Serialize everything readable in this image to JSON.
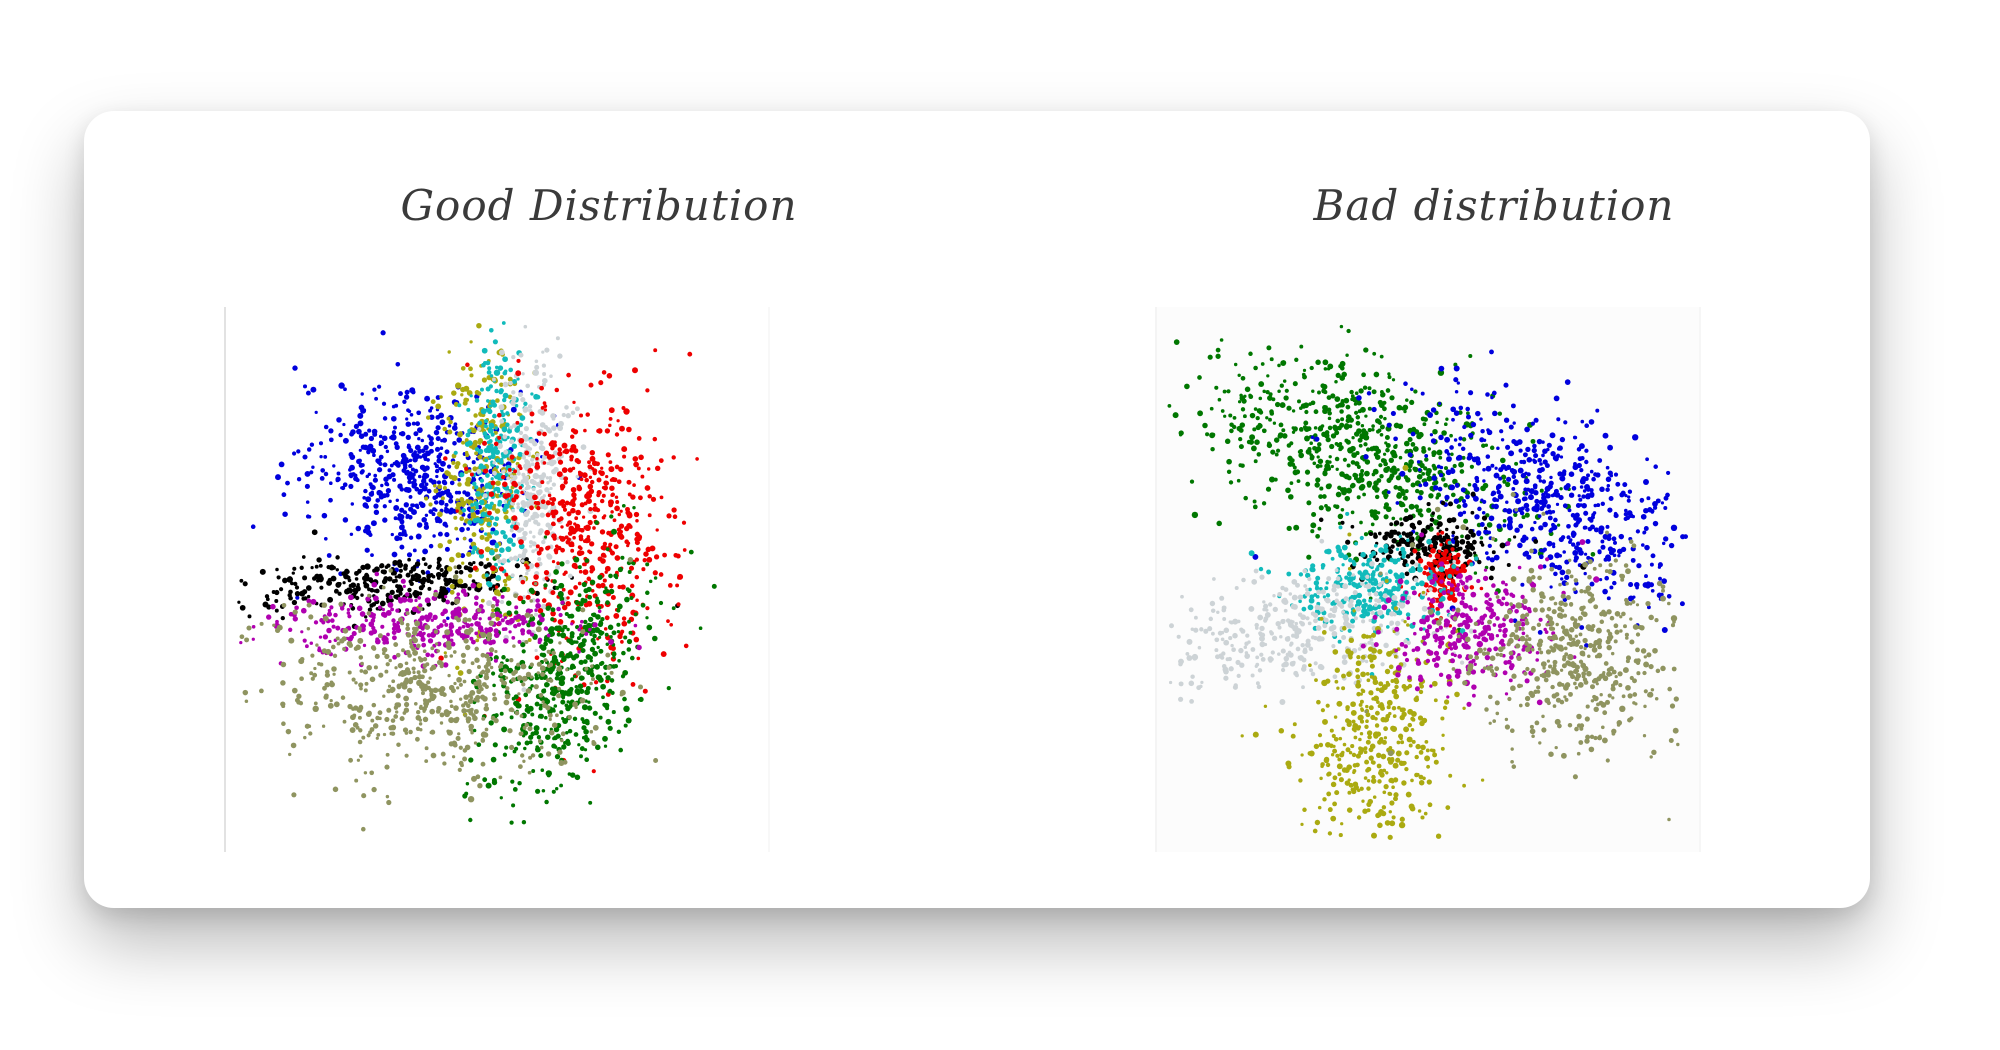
{
  "chart_data": [
    {
      "type": "scatter",
      "title": "Good Distribution",
      "xlim": [
        -10,
        10
      ],
      "ylim": [
        -10,
        10
      ],
      "grid": false,
      "series": [
        {
          "color": "#0000dd",
          "cx": -3.2,
          "cy": 4.0,
          "sx": 2.0,
          "sy": 1.6,
          "angle": -20,
          "n": 520,
          "values": [
            [
              -6.0,
              7.5
            ],
            [
              -4.0,
              5.5
            ],
            [
              -2.0,
              4.0
            ],
            [
              -1.5,
              3.0
            ],
            [
              -5.0,
              2.0
            ]
          ]
        },
        {
          "color": "#000000",
          "cx": -4.0,
          "cy": -0.2,
          "sx": 3.0,
          "sy": 0.55,
          "angle": 3,
          "n": 300,
          "values": [
            [
              -8.0,
              0.0
            ],
            [
              -5.0,
              0.5
            ],
            [
              -2.0,
              -0.5
            ]
          ]
        },
        {
          "color": "#aaaa11",
          "cx": -0.6,
          "cy": 4.0,
          "sx": 0.8,
          "sy": 2.8,
          "angle": 0,
          "n": 280,
          "values": [
            [
              -1.5,
              7.5
            ],
            [
              -0.5,
              3.0
            ],
            [
              0.0,
              -0.5
            ]
          ]
        },
        {
          "color": "#11bbbb",
          "cx": 0.0,
          "cy": 4.5,
          "sx": 0.55,
          "sy": 2.2,
          "angle": 0,
          "n": 240,
          "values": [
            [
              0.0,
              8.0
            ],
            [
              0.0,
              4.0
            ],
            [
              0.5,
              1.5
            ]
          ]
        },
        {
          "color": "#cdd3d6",
          "cx": 1.4,
          "cy": 3.6,
          "sx": 0.7,
          "sy": 2.6,
          "angle": 0,
          "n": 300,
          "values": [
            [
              1.5,
              8.0
            ],
            [
              1.5,
              4.0
            ],
            [
              1.0,
              0.0
            ]
          ]
        },
        {
          "color": "#ee0000",
          "cx": 3.5,
          "cy": 1.8,
          "sx": 1.6,
          "sy": 2.5,
          "angle": 8,
          "n": 520,
          "values": [
            [
              5.0,
              6.5
            ],
            [
              3.5,
              2.0
            ],
            [
              2.0,
              -1.0
            ]
          ]
        },
        {
          "color": "#007700",
          "cx": 2.6,
          "cy": -3.8,
          "sx": 1.3,
          "sy": 2.4,
          "angle": -18,
          "n": 520,
          "values": [
            [
              1.0,
              -1.5
            ],
            [
              2.5,
              -4.0
            ],
            [
              5.0,
              -5.0
            ],
            [
              2.0,
              -7.5
            ]
          ]
        },
        {
          "color": "#b000b0",
          "cx": -2.8,
          "cy": -1.7,
          "sx": 3.0,
          "sy": 0.6,
          "angle": 0,
          "n": 320,
          "values": [
            [
              -8.5,
              -1.8
            ],
            [
              -3.0,
              -1.7
            ],
            [
              1.0,
              -1.5
            ]
          ]
        },
        {
          "color": "#8f9460",
          "cx": -2.6,
          "cy": -4.2,
          "sx": 3.0,
          "sy": 1.6,
          "angle": -5,
          "n": 560,
          "values": [
            [
              -7.0,
              -5.0
            ],
            [
              -3.0,
              -4.0
            ],
            [
              -0.5,
              -6.0
            ],
            [
              -1.0,
              -8.5
            ]
          ]
        }
      ]
    },
    {
      "type": "scatter",
      "title": "Bad distribution",
      "xlim": [
        -10,
        10
      ],
      "ylim": [
        -10,
        10
      ],
      "grid": false,
      "series": [
        {
          "color": "#007700",
          "cx": -2.8,
          "cy": 5.0,
          "sx": 3.2,
          "sy": 1.6,
          "angle": -22,
          "n": 680,
          "values": [
            [
              -9.0,
              2.5
            ],
            [
              -3.0,
              5.0
            ],
            [
              0.5,
              8.0
            ],
            [
              1.5,
              6.0
            ]
          ]
        },
        {
          "color": "#0000dd",
          "cx": 4.5,
          "cy": 3.0,
          "sx": 2.8,
          "sy": 1.5,
          "angle": -28,
          "n": 560,
          "values": [
            [
              1.0,
              1.5
            ],
            [
              4.5,
              3.0
            ],
            [
              8.0,
              5.5
            ],
            [
              9.5,
              2.0
            ]
          ]
        },
        {
          "color": "#000000",
          "cx": 0.0,
          "cy": 1.3,
          "sx": 1.2,
          "sy": 0.6,
          "angle": 0,
          "n": 200,
          "values": [
            [
              -1.0,
              1.5
            ],
            [
              0.5,
              1.0
            ],
            [
              6.0,
              0.5
            ]
          ]
        },
        {
          "color": "#ee0000",
          "cx": 0.6,
          "cy": 0.0,
          "sx": 0.45,
          "sy": 0.7,
          "angle": 0,
          "n": 120,
          "values": [
            [
              0.5,
              0.0
            ],
            [
              0.8,
              -0.5
            ]
          ]
        },
        {
          "color": "#11bbbb",
          "cx": -2.2,
          "cy": -0.4,
          "sx": 1.5,
          "sy": 0.9,
          "angle": 0,
          "n": 260,
          "values": [
            [
              -3.0,
              0.0
            ],
            [
              -1.5,
              -0.5
            ],
            [
              -2.0,
              -2.0
            ]
          ]
        },
        {
          "color": "#cdd3d6",
          "cx": -5.0,
          "cy": -2.0,
          "sx": 2.8,
          "sy": 1.1,
          "angle": 8,
          "n": 360,
          "values": [
            [
              -9.0,
              -3.0
            ],
            [
              -5.0,
              -2.0
            ],
            [
              -1.0,
              -1.0
            ]
          ]
        },
        {
          "color": "#aaaa11",
          "cx": -2.2,
          "cy": -6.2,
          "sx": 1.4,
          "sy": 2.4,
          "angle": -8,
          "n": 420,
          "values": [
            [
              -4.0,
              -4.0
            ],
            [
              -2.0,
              -6.0
            ],
            [
              -1.0,
              -9.5
            ]
          ]
        },
        {
          "color": "#b000b0",
          "cx": 1.6,
          "cy": -2.0,
          "sx": 1.6,
          "sy": 1.1,
          "angle": 0,
          "n": 300,
          "values": [
            [
              0.5,
              -1.0
            ],
            [
              2.0,
              -2.5
            ],
            [
              6.5,
              0.0
            ],
            [
              1.5,
              -4.0
            ]
          ]
        },
        {
          "color": "#8f9460",
          "cx": 5.5,
          "cy": -2.8,
          "sx": 2.0,
          "sy": 1.8,
          "angle": -5,
          "n": 480,
          "values": [
            [
              3.5,
              -1.0
            ],
            [
              5.5,
              -3.0
            ],
            [
              7.5,
              -5.0
            ],
            [
              9.5,
              -1.5
            ]
          ]
        }
      ]
    }
  ]
}
